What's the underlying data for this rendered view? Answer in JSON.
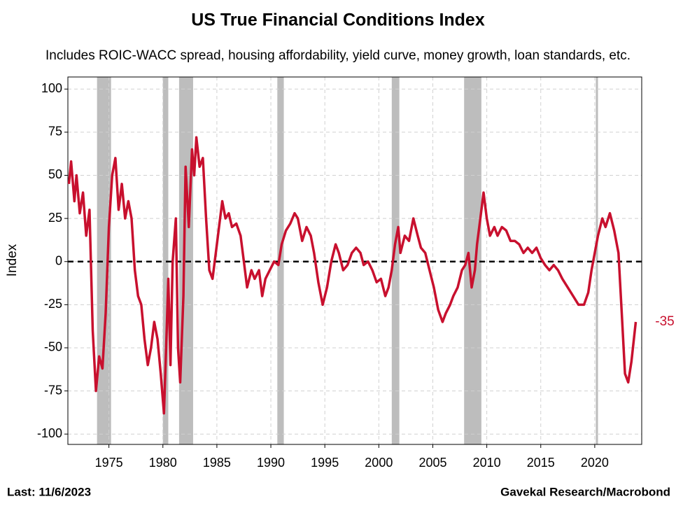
{
  "chart_data": {
    "type": "line",
    "title": "US True Financial Conditions Index",
    "subtitle": "Includes ROIC-WACC spread, housing affordability, yield curve, money growth, loan standards, etc.",
    "y_label": "Index",
    "footnote": "Last: 11/6/2023",
    "source": "Gavekal Research/Macrobond",
    "xlim": [
      1971.2,
      2024.35
    ],
    "ylim": [
      -106,
      107
    ],
    "xticks": [
      1975,
      1980,
      1985,
      1990,
      1995,
      2000,
      2005,
      2010,
      2015,
      2020
    ],
    "yticks": [
      100,
      75,
      50,
      25,
      0,
      -25,
      -50,
      -75,
      -100
    ],
    "grid": true,
    "reference_line": 0,
    "recessions": [
      [
        1973.9,
        1975.2
      ],
      [
        1980.0,
        1980.5
      ],
      [
        1981.5,
        1982.8
      ],
      [
        1990.6,
        1991.2
      ],
      [
        2001.2,
        2001.9
      ],
      [
        2007.9,
        2009.5
      ],
      [
        2020.1,
        2020.3
      ]
    ],
    "x": [
      1971.3,
      1971.5,
      1971.8,
      1972.0,
      1972.3,
      1972.6,
      1972.9,
      1973.2,
      1973.5,
      1973.8,
      1974.1,
      1974.4,
      1974.7,
      1975.0,
      1975.3,
      1975.6,
      1975.9,
      1976.2,
      1976.5,
      1976.8,
      1977.1,
      1977.4,
      1977.7,
      1978.0,
      1978.3,
      1978.6,
      1978.9,
      1979.2,
      1979.5,
      1979.8,
      1980.1,
      1980.3,
      1980.5,
      1980.7,
      1980.9,
      1981.2,
      1981.4,
      1981.6,
      1981.9,
      1982.1,
      1982.4,
      1982.7,
      1982.9,
      1983.1,
      1983.4,
      1983.7,
      1984.0,
      1984.3,
      1984.6,
      1984.9,
      1985.2,
      1985.5,
      1985.8,
      1986.1,
      1986.4,
      1986.8,
      1987.2,
      1987.5,
      1987.8,
      1988.2,
      1988.5,
      1988.9,
      1989.2,
      1989.5,
      1989.9,
      1990.3,
      1990.7,
      1991.0,
      1991.4,
      1991.8,
      1992.2,
      1992.5,
      1992.9,
      1993.3,
      1993.7,
      1994.0,
      1994.4,
      1994.8,
      1995.2,
      1995.6,
      1996.0,
      1996.3,
      1996.7,
      1997.1,
      1997.5,
      1997.9,
      1998.3,
      1998.6,
      1999.0,
      1999.4,
      1999.8,
      2000.2,
      2000.6,
      2000.9,
      2001.2,
      2001.5,
      2001.8,
      2002.0,
      2002.4,
      2002.8,
      2003.2,
      2003.6,
      2003.9,
      2004.3,
      2004.7,
      2005.1,
      2005.5,
      2005.9,
      2006.2,
      2006.6,
      2006.9,
      2007.3,
      2007.7,
      2008.0,
      2008.3,
      2008.6,
      2008.9,
      2009.1,
      2009.4,
      2009.7,
      2010.0,
      2010.3,
      2010.7,
      2011.0,
      2011.4,
      2011.8,
      2012.2,
      2012.6,
      2013.0,
      2013.4,
      2013.8,
      2014.2,
      2014.6,
      2015.0,
      2015.4,
      2015.8,
      2016.2,
      2016.6,
      2017.0,
      2017.5,
      2018.0,
      2018.5,
      2019.0,
      2019.4,
      2019.7,
      2020.0,
      2020.3,
      2020.7,
      2021.0,
      2021.4,
      2021.8,
      2022.2,
      2022.5,
      2022.8,
      2023.1,
      2023.4,
      2023.8
    ],
    "series": [
      {
        "color": "#c8102e",
        "values": [
          45,
          58,
          35,
          50,
          28,
          40,
          15,
          30,
          -40,
          -75,
          -55,
          -62,
          -30,
          20,
          50,
          60,
          30,
          45,
          25,
          35,
          25,
          -5,
          -20,
          -25,
          -45,
          -60,
          -50,
          -35,
          -45,
          -65,
          -88,
          -50,
          -10,
          -60,
          0,
          25,
          -50,
          -70,
          -20,
          55,
          20,
          65,
          50,
          72,
          55,
          60,
          25,
          -5,
          -10,
          5,
          20,
          35,
          25,
          28,
          20,
          22,
          15,
          0,
          -15,
          -5,
          -10,
          -5,
          -20,
          -10,
          -5,
          0,
          -2,
          10,
          18,
          22,
          28,
          25,
          12,
          20,
          15,
          5,
          -12,
          -25,
          -15,
          0,
          10,
          5,
          -5,
          -2,
          5,
          8,
          5,
          -2,
          0,
          -5,
          -12,
          -10,
          -20,
          -15,
          -5,
          10,
          20,
          5,
          15,
          12,
          25,
          15,
          8,
          5,
          -5,
          -15,
          -28,
          -35,
          -30,
          -25,
          -20,
          -15,
          -5,
          -2,
          5,
          -15,
          -5,
          10,
          25,
          40,
          25,
          15,
          20,
          15,
          20,
          18,
          12,
          12,
          10,
          5,
          8,
          5,
          8,
          2,
          -2,
          -5,
          -2,
          -5,
          -10,
          -15,
          -20,
          -25,
          -25,
          -18,
          -5,
          5,
          15,
          25,
          20,
          28,
          18,
          5,
          -30,
          -65,
          -70,
          -58,
          -35
        ]
      }
    ]
  }
}
